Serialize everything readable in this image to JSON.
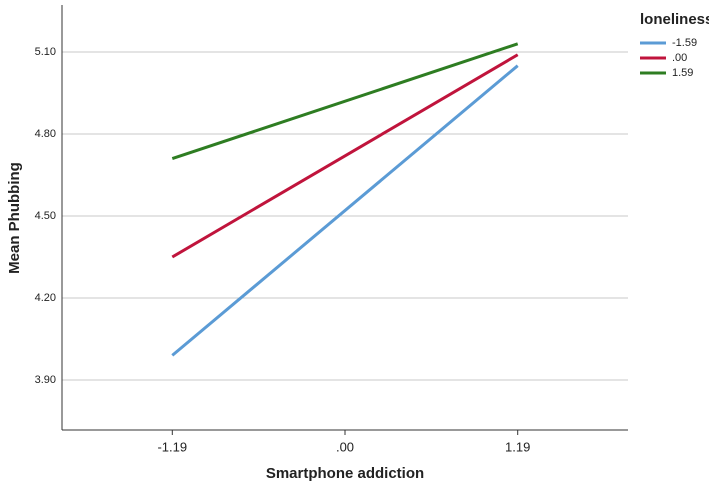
{
  "chart_data": {
    "type": "line",
    "x_label": "Smartphone addiction",
    "y_label": "Mean Phubbing",
    "x": [
      -1.19,
      1.19
    ],
    "xlim": [
      -1.95,
      1.95
    ],
    "xticks": [
      -1.19,
      {
        "value": 0,
        "label": ".00"
      },
      1.19
    ],
    "ylim": [
      3.717,
      5.272
    ],
    "yticks": [
      {
        "value": 3.9,
        "label": "3.90"
      },
      {
        "value": 4.2,
        "label": "4.20"
      },
      {
        "value": 4.5,
        "label": "4.50"
      },
      {
        "value": 4.8,
        "label": "4.80"
      },
      {
        "value": 5.1,
        "label": "5.10"
      }
    ],
    "grid": true,
    "legend_title": "loneliness",
    "legend": "right",
    "series": [
      {
        "name": "-1.59",
        "color": "#5b9bd5",
        "values": [
          3.99,
          5.05
        ]
      },
      {
        "name": ".00",
        "color": "#c0143c",
        "values": [
          4.35,
          5.09
        ]
      },
      {
        "name": "1.59",
        "color": "#2e7d22",
        "values": [
          4.71,
          5.13
        ]
      }
    ]
  }
}
